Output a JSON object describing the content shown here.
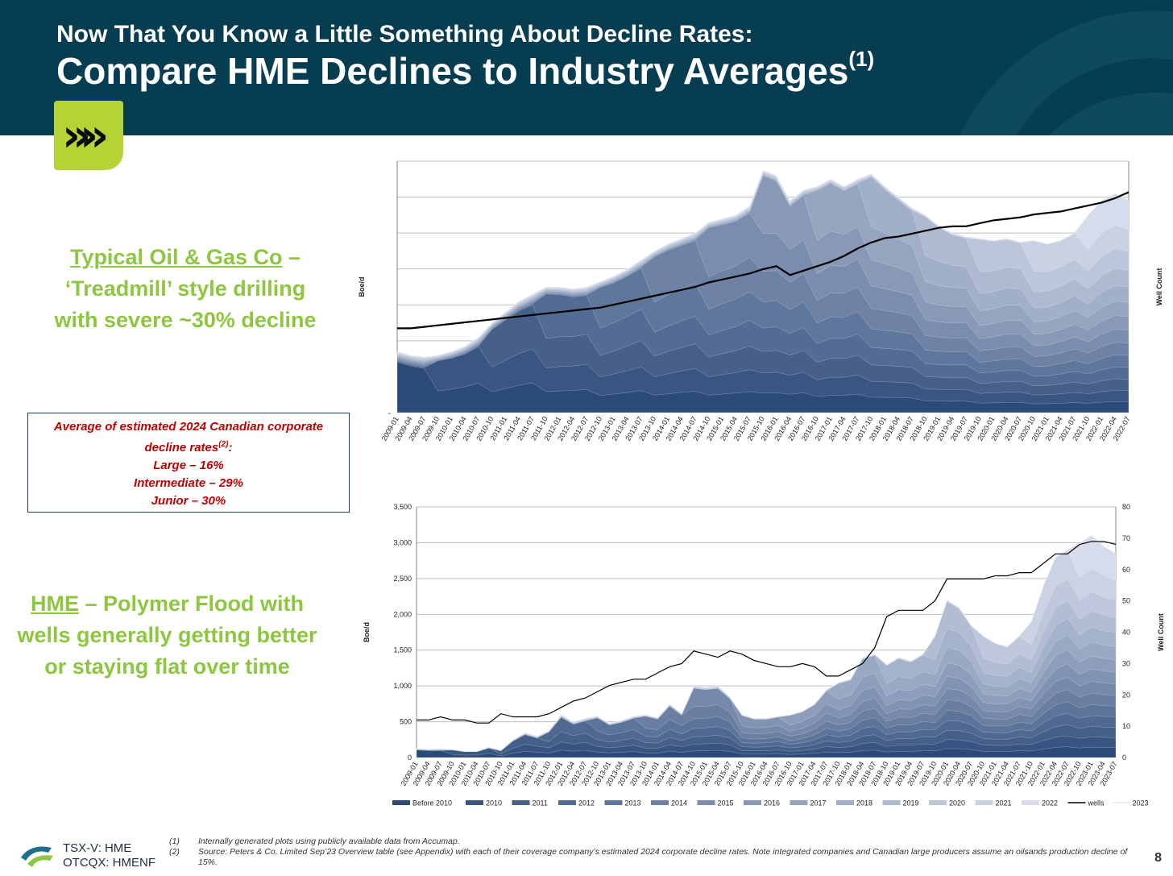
{
  "header": {
    "kicker": "Now That You Know a Little Something About Decline Rates:",
    "title": "Compare HME Declines to Industry Averages",
    "title_sup": "(1)"
  },
  "callout_top": {
    "underlined": "Typical Oil & Gas Co",
    "line1_rest": " –",
    "line2": "‘Treadmill’ style drilling",
    "line3": "with severe ~30% decline"
  },
  "rate_box": {
    "line1": "Average of estimated 2024 Canadian corporate",
    "line2": "decline rates",
    "line2_sup": "(2)",
    "line2_end": ":",
    "line3": "Large – 16%",
    "line4": "Intermediate – 29%",
    "line5": "Junior – 30%"
  },
  "callout_bottom": {
    "underlined": "HME",
    "line1_rest": " – Polymer Flood with",
    "line2": "wells generally getting better",
    "line3": "or staying flat over time"
  },
  "colors": {
    "header_bg": "#063d51",
    "accent_green": "#8dc63f",
    "logo_green": "#b5d334",
    "box_text_red": "#c00000",
    "vintage_dark": "#2c4a78",
    "vintage_light": "#d6dcec",
    "wells_line": "#000000"
  },
  "chart_data": [
    {
      "type": "area",
      "stacked": true,
      "ylabel": "Boe/d",
      "y2label": "Well Count",
      "y_tick_labels": [
        "-"
      ],
      "grid": true,
      "x": [
        "2009-01",
        "2009-04",
        "2009-07",
        "2009-10",
        "2010-01",
        "2010-04",
        "2010-07",
        "2010-10",
        "2011-01",
        "2011-04",
        "2011-07",
        "2011-10",
        "2012-01",
        "2012-04",
        "2012-07",
        "2012-10",
        "2013-01",
        "2013-04",
        "2013-07",
        "2013-10",
        "2014-01",
        "2014-04",
        "2014-07",
        "2014-10",
        "2015-01",
        "2015-04",
        "2015-07",
        "2015-10",
        "2016-01",
        "2016-04",
        "2016-07",
        "2016-10",
        "2017-01",
        "2017-04",
        "2017-07",
        "2017-10",
        "2018-01",
        "2018-04",
        "2018-07",
        "2018-10",
        "2019-01",
        "2019-04",
        "2019-07",
        "2019-10",
        "2020-01",
        "2020-04",
        "2020-07",
        "2020-10",
        "2021-01",
        "2021-04",
        "2021-07",
        "2021-10",
        "2022-01",
        "2022-04",
        "2022-07"
      ],
      "total_envelope": [
        34,
        32,
        31,
        32,
        34,
        37,
        42,
        50,
        56,
        62,
        66,
        70,
        70,
        69,
        70,
        73,
        76,
        80,
        85,
        90,
        94,
        97,
        100,
        106,
        108,
        110,
        115,
        135,
        132,
        118,
        124,
        126,
        130,
        126,
        130,
        133,
        126,
        120,
        114,
        110,
        104,
        100,
        98,
        97,
        96,
        97,
        95,
        96,
        94,
        96,
        100,
        110,
        118,
        122,
        118
      ],
      "wells": [
        57,
        57,
        58,
        59,
        60,
        61,
        62,
        63,
        64,
        65,
        66,
        67,
        68,
        69,
        70,
        71,
        73,
        75,
        77,
        79,
        81,
        83,
        85,
        88,
        90,
        92,
        94,
        97,
        99,
        93,
        96,
        99,
        102,
        106,
        111,
        115,
        118,
        119,
        121,
        123,
        125,
        126,
        126,
        128,
        130,
        131,
        132,
        134,
        135,
        136,
        138,
        140,
        142,
        145,
        149
      ]
    },
    {
      "type": "area",
      "stacked": true,
      "ylabel": "Boe/d",
      "y2label": "Well Count",
      "ylim": [
        0,
        3500
      ],
      "y_ticks": [
        "0",
        "500",
        "1,000",
        "1,500",
        "2,000",
        "2,500",
        "3,000",
        "3,500"
      ],
      "y2lim": [
        0,
        80
      ],
      "y2_ticks": [
        "0",
        "10",
        "20",
        "30",
        "40",
        "50",
        "60",
        "70",
        "80"
      ],
      "grid": true,
      "x": [
        "2009-01",
        "2009-04",
        "2009-07",
        "2009-10",
        "2010-01",
        "2010-04",
        "2010-07",
        "2010-10",
        "2011-01",
        "2011-04",
        "2011-07",
        "2011-10",
        "2012-01",
        "2012-04",
        "2012-07",
        "2012-10",
        "2013-01",
        "2013-04",
        "2013-07",
        "2013-10",
        "2014-01",
        "2014-04",
        "2014-07",
        "2014-10",
        "2015-01",
        "2015-04",
        "2015-07",
        "2015-10",
        "2016-01",
        "2016-04",
        "2016-07",
        "2016-10",
        "2017-01",
        "2017-04",
        "2017-07",
        "2017-10",
        "2018-01",
        "2018-04",
        "2018-07",
        "2018-10",
        "2019-01",
        "2019-04",
        "2019-07",
        "2019-10",
        "2020-01",
        "2020-04",
        "2020-07",
        "2020-10",
        "2021-01",
        "2021-04",
        "2021-07",
        "2021-10",
        "2022-01",
        "2022-04",
        "2022-07",
        "2022-10",
        "2023-01",
        "2023-04",
        "2023-07"
      ],
      "total_envelope": [
        130,
        120,
        125,
        115,
        90,
        90,
        150,
        100,
        250,
        350,
        300,
        380,
        600,
        500,
        550,
        580,
        480,
        520,
        580,
        600,
        560,
        750,
        620,
        1000,
        980,
        1000,
        850,
        600,
        550,
        550,
        580,
        600,
        650,
        750,
        950,
        1050,
        1100,
        1400,
        1450,
        1300,
        1400,
        1350,
        1450,
        1700,
        2200,
        2100,
        1850,
        1700,
        1600,
        1550,
        1700,
        1900,
        2400,
        2800,
        2900,
        3000,
        3100,
        2950,
        2850
      ],
      "wells": [
        12,
        12,
        13,
        12,
        12,
        11,
        11,
        14,
        13,
        13,
        13,
        14,
        16,
        18,
        19,
        21,
        23,
        24,
        25,
        25,
        27,
        29,
        30,
        34,
        33,
        32,
        34,
        33,
        31,
        30,
        29,
        29,
        30,
        29,
        26,
        26,
        28,
        30,
        35,
        45,
        47,
        47,
        47,
        50,
        57,
        57,
        57,
        57,
        58,
        58,
        59,
        59,
        62,
        65,
        65,
        68,
        69,
        69,
        68
      ],
      "legend": [
        "Before 2010",
        "2010",
        "2011",
        "2012",
        "2013",
        "2014",
        "2015",
        "2016",
        "2017",
        "2018",
        "2019",
        "2020",
        "2021",
        "2022",
        "wells",
        "2023"
      ],
      "legend_placement": "bottom"
    }
  ]
}
